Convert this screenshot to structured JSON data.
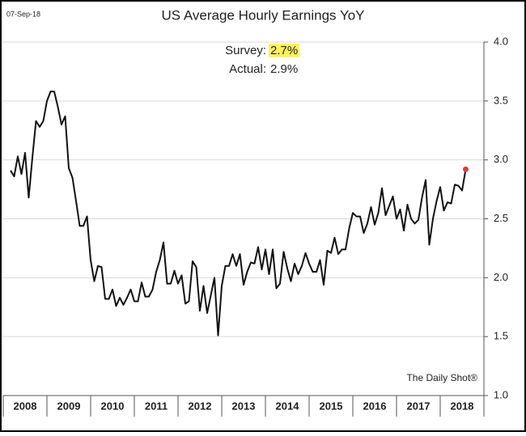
{
  "chart_data": {
    "type": "line",
    "title": "US Average Hourly Earnings YoY",
    "date": "07-Sep-18",
    "annotations": {
      "survey_label": "Survey:",
      "survey_value": "2.7%",
      "actual_label": "Actual:",
      "actual_value": "2.9%",
      "source": "The Daily Shot®"
    },
    "x": [
      2008.167,
      2008.25,
      2008.333,
      2008.417,
      2008.5,
      2008.583,
      2008.667,
      2008.75,
      2008.833,
      2008.917,
      2009,
      2009.083,
      2009.167,
      2009.25,
      2009.333,
      2009.417,
      2009.5,
      2009.583,
      2009.667,
      2009.75,
      2009.833,
      2009.917,
      2010,
      2010.083,
      2010.167,
      2010.25,
      2010.333,
      2010.417,
      2010.5,
      2010.583,
      2010.667,
      2010.75,
      2010.833,
      2010.917,
      2011,
      2011.083,
      2011.167,
      2011.25,
      2011.333,
      2011.417,
      2011.5,
      2011.583,
      2011.667,
      2011.75,
      2011.833,
      2011.917,
      2012,
      2012.083,
      2012.167,
      2012.25,
      2012.333,
      2012.417,
      2012.5,
      2012.583,
      2012.667,
      2012.75,
      2012.833,
      2012.917,
      2013,
      2013.083,
      2013.167,
      2013.25,
      2013.333,
      2013.417,
      2013.5,
      2013.583,
      2013.667,
      2013.75,
      2013.833,
      2013.917,
      2014,
      2014.083,
      2014.167,
      2014.25,
      2014.333,
      2014.417,
      2014.5,
      2014.583,
      2014.667,
      2014.75,
      2014.833,
      2014.917,
      2015,
      2015.083,
      2015.167,
      2015.25,
      2015.333,
      2015.417,
      2015.5,
      2015.583,
      2015.667,
      2015.75,
      2015.833,
      2015.917,
      2016,
      2016.083,
      2016.167,
      2016.25,
      2016.333,
      2016.417,
      2016.5,
      2016.583,
      2016.667,
      2016.75,
      2016.833,
      2016.917,
      2017,
      2017.083,
      2017.167,
      2017.25,
      2017.333,
      2017.417,
      2017.5,
      2017.583,
      2017.667,
      2017.75,
      2017.833,
      2017.917,
      2018,
      2018.083,
      2018.167,
      2018.25,
      2018.333,
      2018.417,
      2018.5,
      2018.583
    ],
    "series": [
      {
        "name": "US Average Hourly Earnings YoY",
        "color": "#111111",
        "last_point_color": "#e8383d",
        "values": [
          2.91,
          2.86,
          3.03,
          2.88,
          3.06,
          2.68,
          3.02,
          3.33,
          3.28,
          3.33,
          3.5,
          3.58,
          3.58,
          3.45,
          3.3,
          3.37,
          2.93,
          2.85,
          2.65,
          2.44,
          2.44,
          2.52,
          2.15,
          1.97,
          2.1,
          2.09,
          1.82,
          1.82,
          1.9,
          1.76,
          1.83,
          1.77,
          1.83,
          1.9,
          1.8,
          1.8,
          1.96,
          1.84,
          1.84,
          1.9,
          2.05,
          2.15,
          2.3,
          1.95,
          1.95,
          2.06,
          1.95,
          2.02,
          1.78,
          1.8,
          2.14,
          2.09,
          1.72,
          1.93,
          1.7,
          1.85,
          2.0,
          1.51,
          1.93,
          2.1,
          2.1,
          2.2,
          2.1,
          2.2,
          1.94,
          2.05,
          2.13,
          2.12,
          2.26,
          2.07,
          2.24,
          2.03,
          2.24,
          1.91,
          1.95,
          2.22,
          2.08,
          1.97,
          2.12,
          2.03,
          2.1,
          2.21,
          2.12,
          2.05,
          2.05,
          2.15,
          1.94,
          2.23,
          2.21,
          2.34,
          2.2,
          2.24,
          2.24,
          2.42,
          2.55,
          2.52,
          2.52,
          2.38,
          2.46,
          2.6,
          2.45,
          2.55,
          2.76,
          2.53,
          2.61,
          2.69,
          2.5,
          2.58,
          2.4,
          2.62,
          2.5,
          2.46,
          2.49,
          2.68,
          2.83,
          2.28,
          2.5,
          2.65,
          2.77,
          2.57,
          2.64,
          2.63,
          2.79,
          2.78,
          2.74,
          2.92
        ]
      }
    ],
    "xlim": [
      2008,
      2019
    ],
    "xticks": [
      2008,
      2009,
      2010,
      2011,
      2012,
      2013,
      2014,
      2015,
      2016,
      2017,
      2018
    ],
    "ylim": [
      1,
      4
    ],
    "yticks": [
      {
        "value": 1,
        "label": "1.0"
      },
      {
        "value": 1.5,
        "label": "1.5"
      },
      {
        "value": 2,
        "label": "2.0"
      },
      {
        "value": 2.5,
        "label": "2.5"
      },
      {
        "value": 3,
        "label": "3.0"
      },
      {
        "value": 3.5,
        "label": "3.5"
      },
      {
        "value": 4,
        "label": "4.0"
      }
    ],
    "grid": true
  }
}
